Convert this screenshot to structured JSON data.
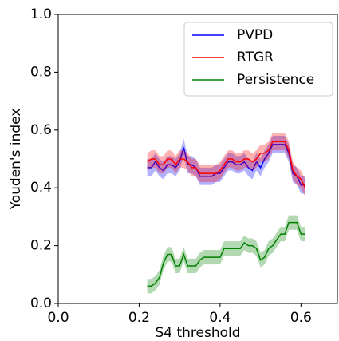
{
  "chart_data": {
    "type": "line",
    "xlabel": "S4 threshold",
    "ylabel": "Youden's index",
    "x": [
      0.22,
      0.23,
      0.24,
      0.25,
      0.26,
      0.27,
      0.28,
      0.29,
      0.3,
      0.31,
      0.32,
      0.33,
      0.34,
      0.35,
      0.36,
      0.37,
      0.38,
      0.39,
      0.4,
      0.41,
      0.42,
      0.43,
      0.44,
      0.45,
      0.46,
      0.47,
      0.48,
      0.49,
      0.5,
      0.51,
      0.52,
      0.53,
      0.54,
      0.55,
      0.56,
      0.57,
      0.58,
      0.59,
      0.6,
      0.61
    ],
    "series": [
      {
        "name": "PVPD",
        "color": "#0000ff",
        "error": 0.03,
        "values": [
          0.47,
          0.47,
          0.49,
          0.47,
          0.46,
          0.48,
          0.48,
          0.47,
          0.49,
          0.54,
          0.48,
          0.48,
          0.47,
          0.44,
          0.44,
          0.44,
          0.44,
          0.45,
          0.45,
          0.47,
          0.49,
          0.49,
          0.48,
          0.48,
          0.49,
          0.47,
          0.46,
          0.49,
          0.47,
          0.5,
          0.52,
          0.55,
          0.55,
          0.55,
          0.55,
          0.52,
          0.45,
          0.44,
          0.41,
          0.41
        ]
      },
      {
        "name": "RTGR",
        "color": "#ff0000",
        "error": 0.03,
        "values": [
          0.49,
          0.5,
          0.5,
          0.48,
          0.48,
          0.5,
          0.5,
          0.48,
          0.5,
          0.5,
          0.49,
          0.47,
          0.47,
          0.45,
          0.45,
          0.45,
          0.45,
          0.45,
          0.46,
          0.48,
          0.5,
          0.5,
          0.49,
          0.49,
          0.5,
          0.5,
          0.49,
          0.5,
          0.52,
          0.52,
          0.53,
          0.56,
          0.56,
          0.56,
          0.56,
          0.53,
          0.46,
          0.44,
          0.43,
          0.4
        ]
      },
      {
        "name": "Persistence",
        "color": "#008000",
        "error": 0.025,
        "values": [
          0.06,
          0.06,
          0.07,
          0.09,
          0.14,
          0.17,
          0.17,
          0.13,
          0.13,
          0.17,
          0.13,
          0.13,
          0.13,
          0.15,
          0.16,
          0.16,
          0.16,
          0.16,
          0.16,
          0.19,
          0.19,
          0.19,
          0.19,
          0.19,
          0.21,
          0.2,
          0.2,
          0.19,
          0.15,
          0.16,
          0.19,
          0.2,
          0.22,
          0.24,
          0.24,
          0.28,
          0.28,
          0.28,
          0.24,
          0.24
        ]
      }
    ],
    "xlim": [
      0,
      0.69
    ],
    "ylim": [
      0,
      1
    ],
    "xticks": [
      {
        "value": 0,
        "label": "0.0"
      },
      {
        "value": 0.2,
        "label": "0.2"
      },
      {
        "value": 0.4,
        "label": "0.4"
      },
      {
        "value": 0.6,
        "label": "0.6"
      }
    ],
    "yticks": [
      {
        "value": 0,
        "label": "0.0"
      },
      {
        "value": 0.2,
        "label": "0.2"
      },
      {
        "value": 0.4,
        "label": "0.4"
      },
      {
        "value": 0.6,
        "label": "0.6"
      },
      {
        "value": 0.8,
        "label": "0.8"
      },
      {
        "value": 1,
        "label": "1.0"
      }
    ],
    "legend": "upper right"
  }
}
